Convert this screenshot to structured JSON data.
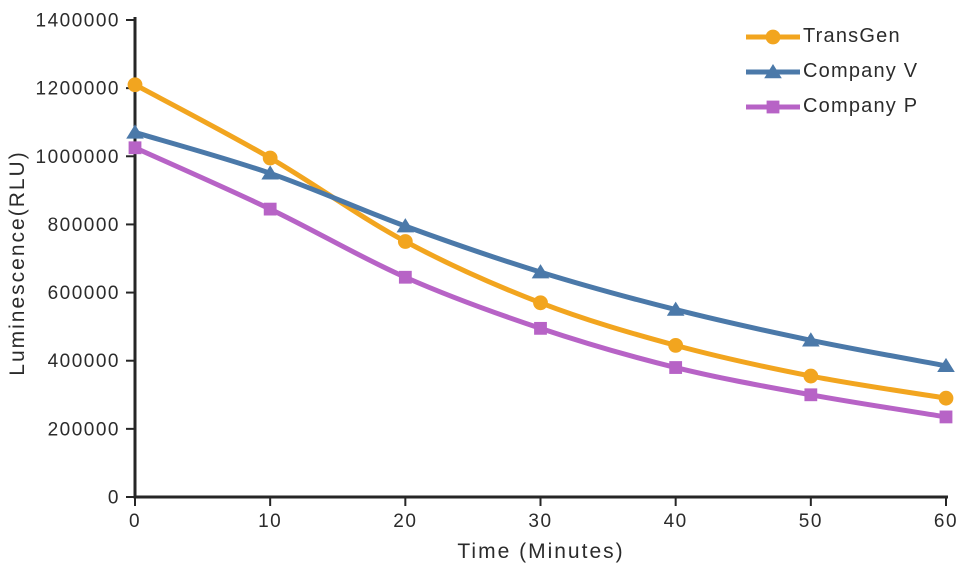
{
  "chart_data": {
    "type": "line",
    "title": "",
    "xlabel": "Time (Minutes)",
    "ylabel": "Luminescence(RLU)",
    "x": [
      0,
      10,
      20,
      30,
      40,
      50,
      60
    ],
    "x_tick_labels": [
      "0",
      "10",
      "20",
      "30",
      "40",
      "50",
      "60"
    ],
    "y_ticks": [
      0,
      200000,
      400000,
      600000,
      800000,
      1000000,
      1200000,
      1400000
    ],
    "y_tick_labels": [
      "0",
      "200000",
      "400000",
      "600000",
      "800000",
      "1000000",
      "1200000",
      "1400000"
    ],
    "xlim": [
      0,
      60
    ],
    "ylim": [
      0,
      1400000
    ],
    "grid": false,
    "line_style": "smooth",
    "legend_position": "top-right",
    "series": [
      {
        "name": "TransGen",
        "color": "#F2A51F",
        "marker": "circle",
        "values": [
          1210000,
          995000,
          750000,
          570000,
          445000,
          355000,
          290000
        ]
      },
      {
        "name": "Company V",
        "color": "#4B79A9",
        "marker": "triangle",
        "values": [
          1070000,
          950000,
          795000,
          660000,
          550000,
          460000,
          385000
        ]
      },
      {
        "name": "Company P",
        "color": "#B763C6",
        "marker": "square",
        "values": [
          1025000,
          845000,
          645000,
          495000,
          380000,
          300000,
          235000
        ]
      }
    ],
    "colors": {
      "axis": "#262626",
      "text": "#2b2b2b",
      "background": "#ffffff"
    }
  }
}
